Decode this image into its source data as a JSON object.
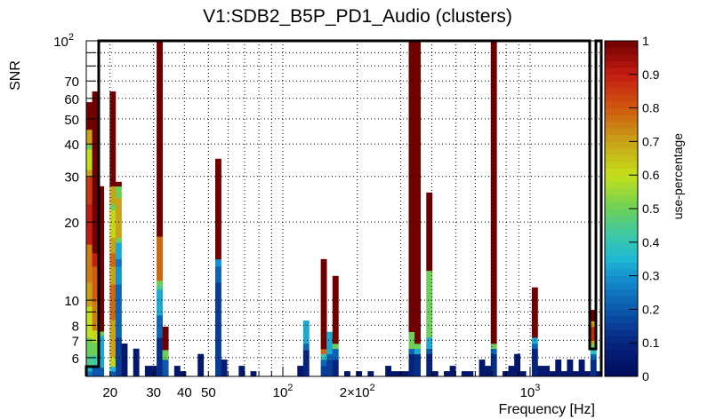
{
  "chart_data": {
    "type": "heatmap",
    "title": "V1:SDB2_B5P_PD1_Audio (clusters)",
    "xlabel": "Frequency [Hz]",
    "ylabel": "SNR",
    "zlabel": "use-percentage",
    "x_scale": "log",
    "y_scale": "log",
    "xlim": [
      16.03,
      1956
    ],
    "ylim": [
      5.08,
      100
    ],
    "zlim": [
      0,
      1
    ],
    "x_bins": 88,
    "grid": true,
    "x_tick_labels": [
      {
        "value": 20,
        "label": "20"
      },
      {
        "value": 30,
        "label": "30"
      },
      {
        "value": 40,
        "label": "40"
      },
      {
        "value": 50,
        "label": "50"
      },
      {
        "value": 100,
        "label": "10",
        "sup": "2"
      },
      {
        "value": 200,
        "label": "2×10",
        "sup": "2"
      },
      {
        "value": 1000,
        "label": "10",
        "sup": "3"
      }
    ],
    "x_grid": [
      20,
      30,
      40,
      50,
      60,
      70,
      80,
      90,
      100,
      200,
      300,
      400,
      500,
      600,
      700,
      800,
      900,
      1000
    ],
    "y_tick_labels": [
      {
        "value": 6,
        "label": "6"
      },
      {
        "value": 7,
        "label": "7"
      },
      {
        "value": 8,
        "label": "8"
      },
      {
        "value": 10,
        "label": "10"
      },
      {
        "value": 20,
        "label": "20"
      },
      {
        "value": 30,
        "label": "30"
      },
      {
        "value": 40,
        "label": "40"
      },
      {
        "value": 50,
        "label": "50"
      },
      {
        "value": 60,
        "label": "60"
      },
      {
        "value": 70,
        "label": "70"
      },
      {
        "value": 100,
        "label": "10",
        "sup": "2"
      }
    ],
    "y_grid": [
      6,
      7,
      8,
      9,
      10,
      20,
      30,
      40,
      50,
      60,
      70,
      80,
      90
    ],
    "z_tick_labels": [
      "0",
      "0.1",
      "0.2",
      "0.3",
      "0.4",
      "0.5",
      "0.6",
      "0.7",
      "0.8",
      "0.9",
      "1"
    ],
    "palette": [
      [
        0.0,
        "#000b5a"
      ],
      [
        0.1,
        "#06237e"
      ],
      [
        0.2,
        "#0b58ad"
      ],
      [
        0.3,
        "#1592cf"
      ],
      [
        0.35,
        "#1fb8d2"
      ],
      [
        0.42,
        "#3cc8a8"
      ],
      [
        0.5,
        "#6cd058"
      ],
      [
        0.6,
        "#c4e01a"
      ],
      [
        0.7,
        "#c8a218"
      ],
      [
        0.8,
        "#d0580f"
      ],
      [
        0.9,
        "#c41c12"
      ],
      [
        1.0,
        "#700000"
      ]
    ],
    "columns": [
      {
        "bin": 0,
        "cells": [
          [
            5.32,
            0.25
          ],
          [
            5.5,
            0.35
          ],
          [
            6.14,
            0.45
          ],
          [
            7.18,
            0.5
          ],
          [
            9.46,
            0.6
          ],
          [
            11.7,
            0.7
          ],
          [
            16.4,
            0.75
          ],
          [
            23.4,
            0.9
          ],
          [
            29.9,
            0.85
          ],
          [
            31.8,
            0.7
          ],
          [
            38.2,
            0.6
          ],
          [
            39.7,
            0.5
          ],
          [
            45.5,
            0.7
          ],
          [
            58,
            1
          ]
        ]
      },
      {
        "bin": 1,
        "cells": [
          [
            5.5,
            0.2
          ],
          [
            6.14,
            0.42
          ],
          [
            6.9,
            0.5
          ],
          [
            7.65,
            0.62
          ],
          [
            9.84,
            0.75
          ],
          [
            13.5,
            0.8
          ],
          [
            15.2,
            0.9
          ],
          [
            63.8,
            1
          ]
        ]
      },
      {
        "bin": 2,
        "cells": [
          [
            5.5,
            0.2
          ],
          [
            7.3,
            0.33
          ],
          [
            7.58,
            0.5
          ],
          [
            27.5,
            1
          ]
        ]
      },
      {
        "bin": 4,
        "cells": [
          [
            5.32,
            0.2
          ],
          [
            5.55,
            0.35
          ],
          [
            6.04,
            0.62
          ],
          [
            8.4,
            0.7
          ],
          [
            11.5,
            0.78
          ],
          [
            13.5,
            0.7
          ],
          [
            15.2,
            0.78
          ],
          [
            17.4,
            0.7
          ],
          [
            22.3,
            0.62
          ],
          [
            23.4,
            0.5
          ],
          [
            27.5,
            0.7
          ],
          [
            63.8,
            1
          ]
        ]
      },
      {
        "bin": 5,
        "cells": [
          [
            7.18,
            0.15
          ],
          [
            11.5,
            0.22
          ],
          [
            13.5,
            0.3
          ],
          [
            14.4,
            0.25
          ],
          [
            16.7,
            0.33
          ],
          [
            17.4,
            0.5
          ],
          [
            24.8,
            0.7
          ],
          [
            27.5,
            0.5
          ],
          [
            28.6,
            1
          ]
        ]
      },
      {
        "bin": 6,
        "cells": [
          [
            6.8,
            0.05
          ]
        ]
      },
      {
        "bin": 8,
        "cells": [
          [
            6.5,
            0.05
          ]
        ]
      },
      {
        "bin": 10,
        "cells": [
          [
            5.58,
            0.05
          ]
        ]
      },
      {
        "bin": 11,
        "cells": [
          [
            5.58,
            0.05
          ]
        ]
      },
      {
        "bin": 12,
        "cells": [
          [
            7.18,
            0.12
          ],
          [
            8.75,
            0.22
          ],
          [
            11.0,
            0.33
          ],
          [
            11.4,
            0.45
          ],
          [
            11.9,
            0.5
          ],
          [
            17.6,
            0.78
          ],
          [
            100,
            1
          ]
        ]
      },
      {
        "bin": 13,
        "cells": [
          [
            5.9,
            0.2
          ],
          [
            6.43,
            0.5
          ],
          [
            7.9,
            1
          ]
        ]
      },
      {
        "bin": 15,
        "cells": [
          [
            5.58,
            0.05
          ]
        ]
      },
      {
        "bin": 16,
        "cells": [
          [
            5.32,
            0.05
          ]
        ]
      },
      {
        "bin": 19,
        "cells": [
          [
            6.2,
            0.05
          ]
        ]
      },
      {
        "bin": 22,
        "cells": [
          [
            11.7,
            0.15
          ],
          [
            13.5,
            0.22
          ],
          [
            14.4,
            0.3
          ],
          [
            35.1,
            1
          ]
        ]
      },
      {
        "bin": 23,
        "cells": [
          [
            5.9,
            0.08
          ]
        ]
      },
      {
        "bin": 26,
        "cells": [
          [
            5.58,
            0.05
          ]
        ]
      },
      {
        "bin": 28,
        "cells": [
          [
            5.32,
            0.05
          ]
        ]
      },
      {
        "bin": 36,
        "cells": [
          [
            5.58,
            0.05
          ]
        ]
      },
      {
        "bin": 37,
        "cells": [
          [
            6.43,
            0.1
          ],
          [
            6.8,
            0.22
          ],
          [
            8.34,
            0.33
          ]
        ]
      },
      {
        "bin": 40,
        "cells": [
          [
            5.58,
            0.15
          ],
          [
            5.9,
            0.22
          ],
          [
            6.2,
            0.4
          ],
          [
            6.48,
            0.78
          ],
          [
            14.4,
            1
          ]
        ]
      },
      {
        "bin": 41,
        "cells": [
          [
            5.9,
            0.15
          ],
          [
            6.2,
            0.22
          ],
          [
            7.55,
            0.33
          ]
        ]
      },
      {
        "bin": 42,
        "cells": [
          [
            5.9,
            0.1
          ],
          [
            6.5,
            0.22
          ],
          [
            6.8,
            0.5
          ],
          [
            12.4,
            1
          ]
        ]
      },
      {
        "bin": 44,
        "cells": [
          [
            5.32,
            0.05
          ]
        ]
      },
      {
        "bin": 46,
        "cells": [
          [
            5.32,
            0.05
          ]
        ]
      },
      {
        "bin": 48,
        "cells": [
          [
            5.32,
            0.05
          ]
        ]
      },
      {
        "bin": 51,
        "cells": [
          [
            5.58,
            0.05
          ]
        ]
      },
      {
        "bin": 52,
        "cells": [
          [
            5.32,
            0.05
          ]
        ]
      },
      {
        "bin": 53,
        "cells": [
          [
            5.32,
            0.05
          ]
        ]
      },
      {
        "bin": 54,
        "cells": [
          [
            5.32,
            0.05
          ]
        ]
      },
      {
        "bin": 55,
        "cells": [
          [
            6.2,
            0.1
          ],
          [
            6.5,
            0.22
          ],
          [
            7.55,
            0.5
          ],
          [
            100,
            1
          ]
        ]
      },
      {
        "bin": 56,
        "cells": [
          [
            6.2,
            0.12
          ],
          [
            6.5,
            0.33
          ],
          [
            6.8,
            0.5
          ],
          [
            100,
            1
          ]
        ]
      },
      {
        "bin": 58,
        "cells": [
          [
            6.2,
            0.1
          ],
          [
            6.5,
            0.2
          ],
          [
            7.18,
            0.33
          ],
          [
            13.0,
            0.5
          ],
          [
            26,
            1
          ]
        ]
      },
      {
        "bin": 59,
        "cells": [
          [
            5.32,
            0.05
          ]
        ]
      },
      {
        "bin": 61,
        "cells": [
          [
            5.32,
            0.05
          ]
        ]
      },
      {
        "bin": 62,
        "cells": [
          [
            5.58,
            0.05
          ]
        ]
      },
      {
        "bin": 64,
        "cells": [
          [
            5.32,
            0.05
          ]
        ]
      },
      {
        "bin": 65,
        "cells": [
          [
            5.32,
            0.05
          ]
        ]
      },
      {
        "bin": 67,
        "cells": [
          [
            5.9,
            0.05
          ]
        ]
      },
      {
        "bin": 68,
        "cells": [
          [
            5.58,
            0.05
          ]
        ]
      },
      {
        "bin": 69,
        "cells": [
          [
            6.2,
            0.12
          ],
          [
            6.5,
            0.22
          ],
          [
            6.8,
            0.5
          ],
          [
            100,
            1
          ]
        ]
      },
      {
        "bin": 71,
        "cells": [
          [
            5.32,
            0.05
          ]
        ]
      },
      {
        "bin": 72,
        "cells": [
          [
            5.58,
            0.05
          ]
        ]
      },
      {
        "bin": 73,
        "cells": [
          [
            6.2,
            0.05
          ]
        ]
      },
      {
        "bin": 74,
        "cells": [
          [
            5.32,
            0.05
          ]
        ]
      },
      {
        "bin": 76,
        "cells": [
          [
            6.5,
            0.1
          ],
          [
            6.8,
            0.22
          ],
          [
            7.18,
            0.33
          ],
          [
            11.2,
            1
          ]
        ]
      },
      {
        "bin": 77,
        "cells": [
          [
            5.58,
            0.05
          ]
        ]
      },
      {
        "bin": 78,
        "cells": [
          [
            5.58,
            0.05
          ]
        ]
      },
      {
        "bin": 79,
        "cells": [
          [
            5.32,
            0.05
          ]
        ]
      },
      {
        "bin": 80,
        "cells": [
          [
            5.9,
            0.05
          ]
        ]
      },
      {
        "bin": 81,
        "cells": [
          [
            5.32,
            0.05
          ]
        ]
      },
      {
        "bin": 82,
        "cells": [
          [
            5.9,
            0.05
          ]
        ]
      },
      {
        "bin": 83,
        "cells": [
          [
            5.32,
            0.05
          ]
        ]
      },
      {
        "bin": 84,
        "cells": [
          [
            5.9,
            0.05
          ]
        ]
      },
      {
        "bin": 85,
        "cells": [
          [
            5.32,
            0.05
          ]
        ]
      },
      {
        "bin": 86,
        "cells": [
          [
            5.9,
            0.12
          ],
          [
            6.2,
            0.22
          ],
          [
            6.5,
            0.38
          ],
          [
            6.8,
            0.5
          ],
          [
            7.0,
            0.7
          ],
          [
            7.9,
            0.88
          ],
          [
            8.3,
            0.7
          ],
          [
            9.17,
            1
          ]
        ]
      },
      {
        "bin": 87,
        "cells": [
          [
            5.32,
            0.05
          ]
        ]
      }
    ]
  }
}
